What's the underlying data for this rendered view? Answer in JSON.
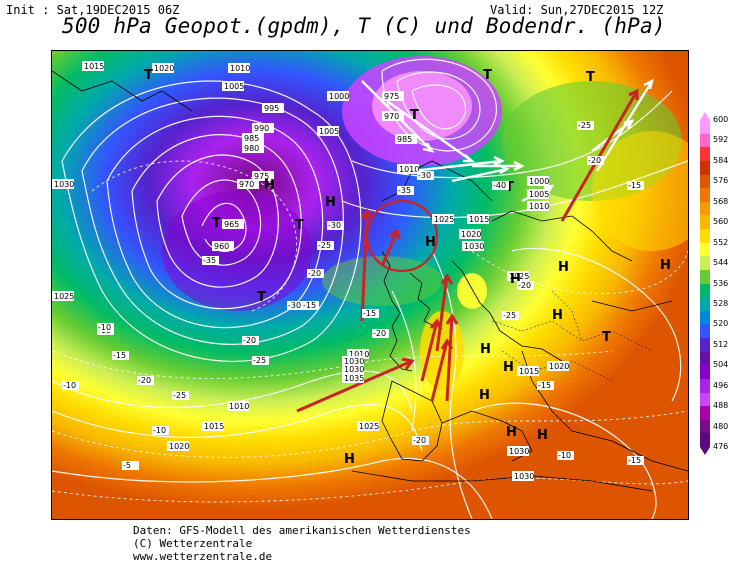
{
  "header": {
    "init": "Init : Sat,19DEC2015 06Z",
    "valid": "Valid: Sun,27DEC2015 12Z",
    "title": "500 hPa Geopot.(gpdm), T (C) und Bodendr. (hPa)"
  },
  "footer": {
    "line1": "Daten: GFS-Modell des amerikanischen Wetterdienstes",
    "line2": "(C) Wetterzentrale",
    "line3": "www.wetterzentrale.de"
  },
  "legend": {
    "labels": [
      "600",
      "592",
      "584",
      "576",
      "568",
      "560",
      "552",
      "544",
      "536",
      "528",
      "520",
      "512",
      "504",
      "496",
      "488",
      "480",
      "476"
    ],
    "colors": [
      "#ff99ff",
      "#ff66cc",
      "#ff3333",
      "#cc3300",
      "#dd5500",
      "#ee7700",
      "#f49a00",
      "#f8b800",
      "#ffdd00",
      "#ffff33",
      "#ccee55",
      "#66cc33",
      "#00bb66",
      "#00aaaa",
      "#0088dd",
      "#3355ff",
      "#5522cc",
      "#6611aa",
      "#8800cc",
      "#aa22ee",
      "#cc44ff",
      "#aa00aa",
      "#7a0a8a",
      "#5a0a7a"
    ]
  },
  "pressure_labels": [
    {
      "t": "1015"
    },
    {
      "t": "1020"
    },
    {
      "t": "1010"
    },
    {
      "t": "1005"
    },
    {
      "t": "995"
    },
    {
      "t": "990"
    },
    {
      "t": "985"
    },
    {
      "t": "980"
    },
    {
      "t": "975"
    },
    {
      "t": "970"
    },
    {
      "t": "965"
    },
    {
      "t": "960"
    },
    {
      "t": "1030"
    },
    {
      "t": "1025"
    },
    {
      "t": "1015"
    },
    {
      "t": "1010"
    },
    {
      "t": "1005"
    },
    {
      "t": "1000"
    },
    {
      "t": "975"
    },
    {
      "t": "970"
    },
    {
      "t": "985"
    },
    {
      "t": "1010"
    },
    {
      "t": "1015"
    },
    {
      "t": "1020"
    },
    {
      "t": "1025"
    },
    {
      "t": "1030"
    },
    {
      "t": "1025"
    },
    {
      "t": "1020"
    },
    {
      "t": "1015"
    },
    {
      "t": "1010"
    },
    {
      "t": "1030"
    },
    {
      "t": "1030"
    },
    {
      "t": "1035"
    },
    {
      "t": "1025"
    },
    {
      "t": "1030"
    },
    {
      "t": "1030"
    },
    {
      "t": "1020"
    },
    {
      "t": "1000"
    },
    {
      "t": "1005"
    },
    {
      "t": "1010"
    }
  ],
  "pressure_systems": [
    {
      "t": "H"
    },
    {
      "t": "H"
    },
    {
      "t": "H"
    },
    {
      "t": "H"
    },
    {
      "t": "H"
    },
    {
      "t": "H"
    },
    {
      "t": "H"
    },
    {
      "t": "H"
    },
    {
      "t": "H"
    },
    {
      "t": "H"
    },
    {
      "t": "H"
    },
    {
      "t": "H"
    },
    {
      "t": "H"
    },
    {
      "t": "T"
    },
    {
      "t": "T"
    },
    {
      "t": "T"
    },
    {
      "t": "T"
    },
    {
      "t": "T"
    },
    {
      "t": "T"
    },
    {
      "t": "T"
    },
    {
      "t": "T"
    },
    {
      "t": "T"
    }
  ],
  "temperature_labels": [
    {
      "t": "-10"
    },
    {
      "t": "-15"
    },
    {
      "t": "-20"
    },
    {
      "t": "-25"
    },
    {
      "t": "-30"
    },
    {
      "t": "-35"
    },
    {
      "t": "-40"
    },
    {
      "t": "-25"
    },
    {
      "t": "-20"
    },
    {
      "t": "-15"
    },
    {
      "t": "-10"
    },
    {
      "t": "-5"
    },
    {
      "t": "-15"
    },
    {
      "t": "-20"
    },
    {
      "t": "-25"
    },
    {
      "t": "-30"
    },
    {
      "t": "-10"
    },
    {
      "t": "-15"
    },
    {
      "t": "-20"
    },
    {
      "t": "-25"
    },
    {
      "t": "-15"
    },
    {
      "t": "-20"
    },
    {
      "t": "-10"
    },
    {
      "t": "-15"
    },
    {
      "t": "-20"
    },
    {
      "t": "-25"
    },
    {
      "t": "-30"
    },
    {
      "t": "-35"
    },
    {
      "t": "-20"
    },
    {
      "t": "-15"
    }
  ]
}
